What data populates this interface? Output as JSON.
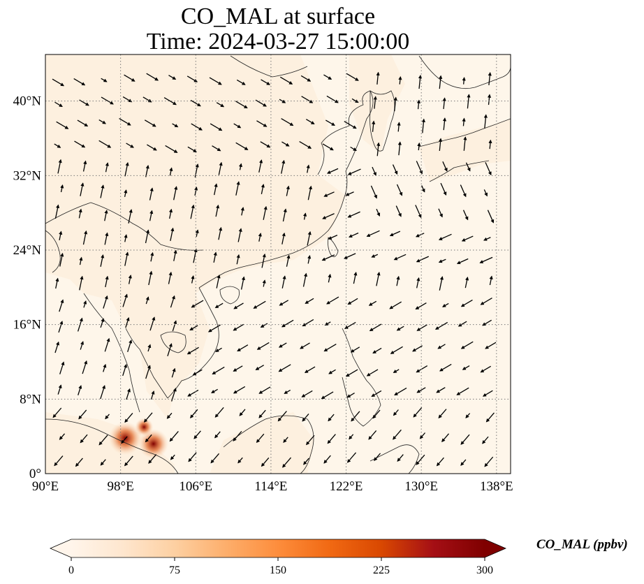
{
  "title": {
    "line1": "CO_MAL at surface",
    "line2": "Time: 2024-03-27 15:00:00"
  },
  "map": {
    "lon_range": [
      90,
      139.5
    ],
    "lat_range": [
      0,
      45
    ],
    "lon_ticks": [
      {
        "value": 90,
        "label": "90°E"
      },
      {
        "value": 98,
        "label": "98°E"
      },
      {
        "value": 106,
        "label": "106°E"
      },
      {
        "value": 114,
        "label": "114°E"
      },
      {
        "value": 122,
        "label": "122°E"
      },
      {
        "value": 130,
        "label": "130°E"
      },
      {
        "value": 138,
        "label": "138°E"
      }
    ],
    "lat_ticks": [
      {
        "value": 0,
        "label": "0°"
      },
      {
        "value": 8,
        "label": "8°N"
      },
      {
        "value": 16,
        "label": "16°N"
      },
      {
        "value": 24,
        "label": "24°N"
      },
      {
        "value": 32,
        "label": "32°N"
      },
      {
        "value": 40,
        "label": "40°N"
      }
    ],
    "gridlines": true,
    "background_color": "#fef6ea",
    "hotspots": [
      {
        "lon": 98.5,
        "lat": 3.8,
        "value": 300
      },
      {
        "lon": 101.5,
        "lat": 3.2,
        "value": 260
      },
      {
        "lon": 100.5,
        "lat": 5.0,
        "value": 120
      }
    ]
  },
  "colorbar": {
    "label": "CO_MAL (ppbv)",
    "min": 0,
    "max": 300,
    "ticks": [
      "0",
      "75",
      "150",
      "225",
      "300"
    ],
    "colors": [
      "#fff5eb",
      "#fee6ce",
      "#fdd0a2",
      "#fdae6b",
      "#fd8d3c",
      "#f16913",
      "#d94801",
      "#a50f15",
      "#7f0000"
    ],
    "extend": "both"
  }
}
